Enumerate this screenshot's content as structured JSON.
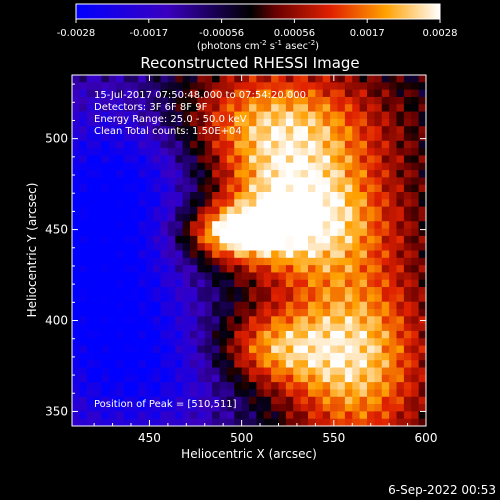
{
  "colorbar": {
    "ticks": [
      "-0.0028",
      "-0.0017",
      "-0.00056",
      "0.00056",
      "0.0017",
      "0.0028"
    ],
    "unit_label": "(photons cm",
    "unit_sup1": "-2",
    "unit_mid": " s",
    "unit_sup2": "-1",
    "unit_mid2": " asec",
    "unit_sup3": "-2",
    "unit_close": ")"
  },
  "annotations": {
    "time_range": "15-Jul-2017 07:50:48.000 to 07:54:20.000",
    "detectors": "Detectors: 3F 6F 8F 9F",
    "energy": "Energy Range: 25.0 - 50.0 keV",
    "clean": "Clean    Total counts: 1.50E+04",
    "peak": "Position of Peak = [510,511]"
  },
  "footer": {
    "date": "6-Sep-2022 00:53"
  },
  "chart_data": {
    "type": "heatmap",
    "title": "Reconstructed RHESSI Image",
    "xlabel": "Heliocentric X (arcsec)",
    "ylabel": "Heliocentric Y (arcsec)",
    "xlim": [
      408,
      600
    ],
    "ylim": [
      342,
      535
    ],
    "xticks": [
      450,
      500,
      550,
      600
    ],
    "yticks": [
      350,
      400,
      450,
      500
    ],
    "colorbar_range": [
      -0.0028,
      0.0028
    ],
    "colormap": "rhessi (blue-black-red-yellow-white)",
    "features": [
      {
        "name": "bright region upper",
        "x_center": 525,
        "y_center": 510,
        "level": "high"
      },
      {
        "name": "bright region center",
        "x_center": 530,
        "y_center": 450,
        "level": "high"
      },
      {
        "name": "bright region lower-right",
        "x_center": 560,
        "y_center": 380,
        "level": "high"
      },
      {
        "name": "negative region left",
        "x_center": 440,
        "y_center": 430,
        "level": "low"
      }
    ]
  }
}
